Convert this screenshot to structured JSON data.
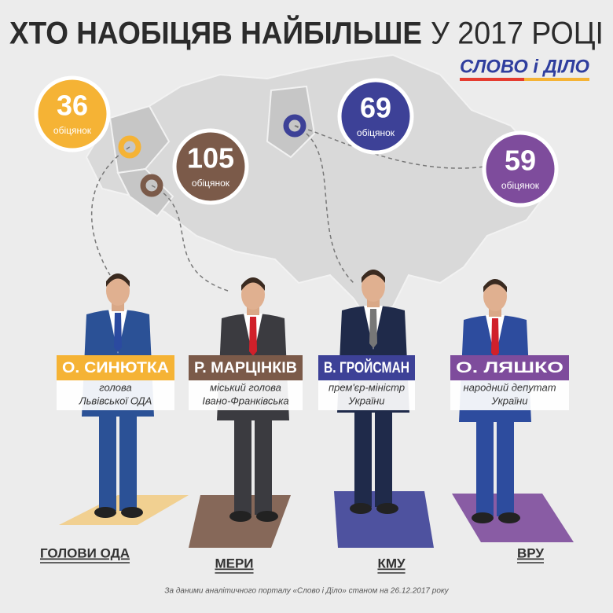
{
  "title_bold": "ХТО НАОБІЦЯВ НАЙБІЛЬШЕ",
  "title_light": "У 2017 РОЦІ",
  "logo": "СЛОВО і ДІЛО",
  "people": [
    {
      "name": "О. СИНЮТКА",
      "role_line1": "голова",
      "role_line2": "Львівської ОДА",
      "count": 36,
      "unit": "обіцянок",
      "category": "ГОЛОВИ ОДА",
      "color": "#f5b335"
    },
    {
      "name": "Р. МАРЦІНКІВ",
      "role_line1": "міський голова",
      "role_line2": "Івано-Франківська",
      "count": 105,
      "unit": "обіцянок",
      "category": "МЕРИ",
      "color": "#7b5a49"
    },
    {
      "name": "В. ГРОЙСМАН",
      "role_line1": "прем'єр-міністр",
      "role_line2": "України",
      "count": 69,
      "unit": "обіцянок",
      "category": "КМУ",
      "color": "#3d4197"
    },
    {
      "name": "О. ЛЯШКО",
      "role_line1": "народний депутат",
      "role_line2": "України",
      "count": 59,
      "unit": "обіцянок",
      "category": "ВРУ",
      "color": "#7e4c9c"
    }
  ],
  "footnote": "За даними аналітичного порталу «Слово і Діло» станом на 26.12.2017 року"
}
